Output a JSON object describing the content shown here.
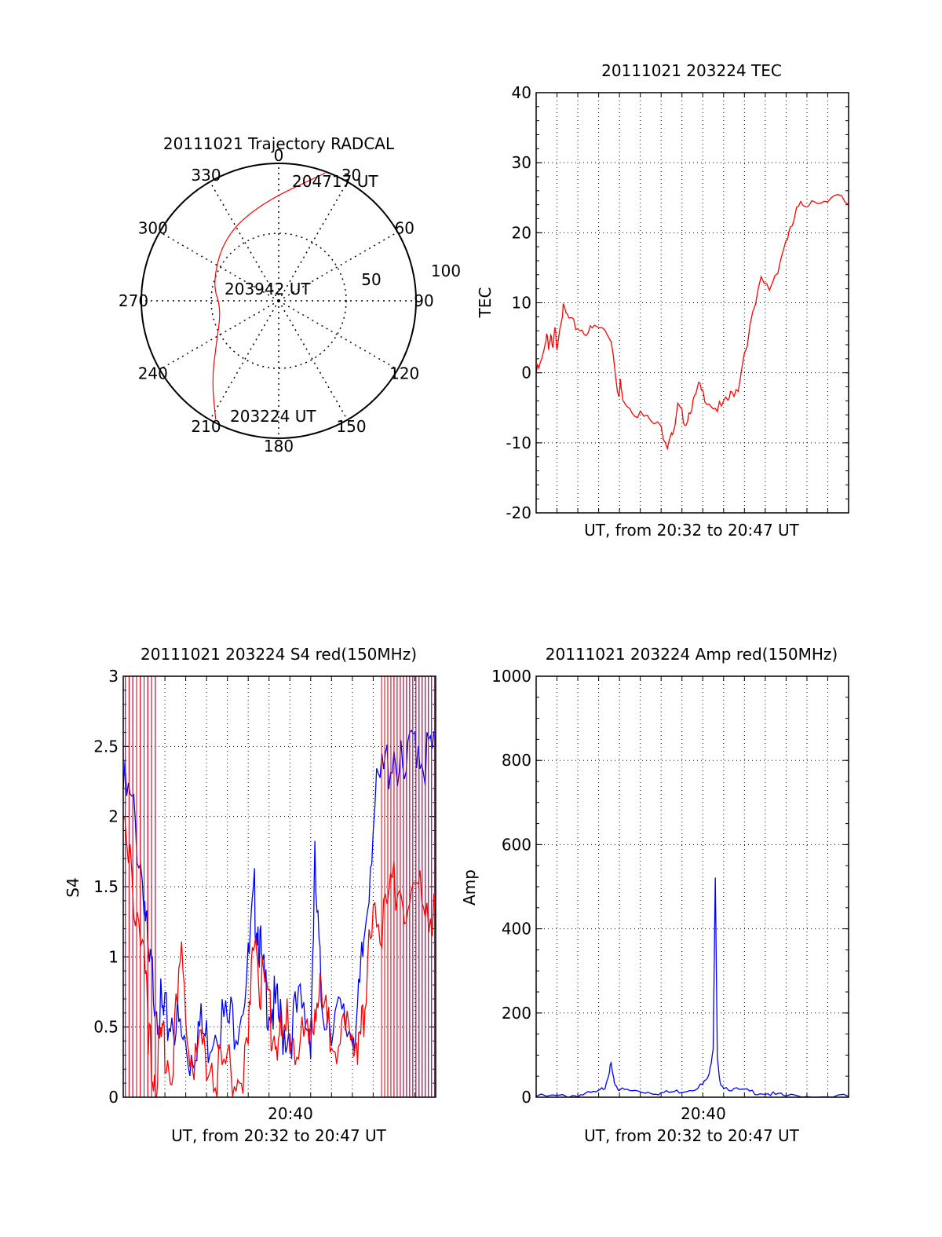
{
  "colors": {
    "red": "#ff0000",
    "blue": "#0000ff",
    "axis": "#000000",
    "grid": "#000000"
  },
  "chart_data": [
    {
      "id": "polar",
      "type": "polar-trajectory",
      "title": "20111021 Trajectory RADCAL",
      "azimuth_labels": [
        "0",
        "30",
        "60",
        "90",
        "120",
        "150",
        "180",
        "210",
        "240",
        "270",
        "300",
        "330"
      ],
      "elevation_labels": [
        "50",
        "100"
      ],
      "points": [
        {
          "label": "204717 UT",
          "az": 20,
          "zen": 89
        },
        {
          "label": "203942 UT",
          "az": 262,
          "zen": 38
        },
        {
          "label": "203224 UT",
          "az": 208,
          "zen": 88
        }
      ],
      "trajectory": [
        [
          20,
          89
        ],
        [
          350,
          65
        ],
        [
          320,
          55
        ],
        [
          285,
          45
        ],
        [
          262,
          38
        ],
        [
          235,
          50
        ],
        [
          220,
          68
        ],
        [
          208,
          88
        ]
      ]
    },
    {
      "id": "tec",
      "type": "line",
      "title": "20111021 203224 TEC",
      "ylabel": "TEC",
      "xlabel": "UT, from 20:32 to 20:47 UT",
      "xlim": [
        0,
        15
      ],
      "ylim": [
        -20,
        40
      ],
      "yticks": [
        "-20",
        "-10",
        "0",
        "10",
        "20",
        "30",
        "40"
      ],
      "series": [
        {
          "color": "red",
          "x": [
            0,
            0.2,
            0.4,
            0.5,
            0.6,
            0.7,
            0.8,
            0.9,
            1.0,
            1.2,
            1.3,
            1.5,
            1.7,
            2.0,
            2.3,
            2.6,
            2.9,
            3.3,
            3.6,
            3.9,
            4.0,
            4.05,
            4.1,
            4.3,
            4.6,
            5.0,
            5.5,
            6.0,
            6.3,
            6.5,
            6.6,
            6.8,
            7.0,
            7.2,
            7.4,
            7.6,
            7.8,
            8.0,
            8.3,
            8.6,
            8.9,
            9.2,
            9.4,
            9.7,
            10.0,
            10.4,
            10.8,
            11.2,
            11.6,
            12.0,
            12.2,
            12.5,
            12.8,
            13.1,
            13.5,
            14.0,
            14.5,
            15.0
          ],
          "y": [
            0,
            1,
            3,
            6,
            4,
            5,
            3,
            6,
            4,
            8,
            9,
            8,
            7,
            6.5,
            6,
            6,
            6.5,
            6,
            5,
            -2,
            -3,
            -1,
            -3,
            -4,
            -5,
            -6,
            -7,
            -8,
            -10,
            -8,
            -9,
            -5,
            -6,
            -7,
            -5,
            -4,
            -2,
            -3,
            -4,
            -5,
            -5,
            -4,
            -3,
            -2,
            3,
            8,
            13,
            12,
            15,
            19,
            20,
            23,
            24,
            24.5,
            25,
            24,
            25,
            24
          ]
        }
      ]
    },
    {
      "id": "s4",
      "type": "line",
      "title": "20111021 203224 S4 red(150MHz)",
      "ylabel": "S4",
      "xlabel": "UT, from 20:32 to 20:47 UT",
      "xtick_label": "20:40",
      "xtick_value": 8,
      "xlim": [
        0,
        15
      ],
      "ylim": [
        0,
        3
      ],
      "yticks": [
        "0",
        "0.5",
        "1",
        "1.5",
        "2",
        "2.5",
        "3"
      ],
      "series": [
        {
          "color": "blue",
          "x": [
            0,
            0.5,
            1.0,
            1.2,
            1.5,
            1.8,
            2.0,
            2.4,
            2.8,
            3.2,
            3.6,
            4.0,
            4.5,
            5.0,
            5.5,
            6.0,
            6.3,
            6.5,
            6.7,
            7.0,
            7.3,
            7.6,
            8.0,
            8.5,
            9.0,
            9.2,
            9.5,
            10.0,
            10.5,
            11.0,
            11.3,
            11.6,
            12.0,
            12.5,
            13.0,
            13.5,
            14.0,
            14.5,
            15.0
          ],
          "y": [
            2.2,
            2.0,
            1.5,
            0.9,
            0.8,
            0.6,
            0.5,
            0.6,
            0.4,
            0.3,
            0.5,
            0.4,
            0.6,
            0.5,
            0.6,
            0.9,
            1.4,
            1.2,
            0.8,
            0.7,
            0.6,
            0.5,
            0.5,
            0.6,
            0.5,
            1.6,
            0.7,
            0.6,
            0.5,
            0.5,
            0.6,
            1.2,
            2.0,
            2.3,
            2.5,
            2.2,
            2.6,
            2.4,
            2.5
          ]
        },
        {
          "color": "red",
          "x": [
            0,
            0.5,
            1.0,
            1.2,
            1.5,
            1.8,
            2.0,
            2.4,
            2.8,
            3.2,
            3.6,
            4.0,
            4.5,
            5.0,
            5.5,
            6.0,
            6.3,
            6.6,
            7.0,
            7.3,
            7.6,
            8.0,
            8.5,
            9.0,
            9.3,
            9.6,
            10.0,
            10.5,
            11.0,
            11.3,
            11.6,
            12.0,
            12.5,
            13.0,
            13.5,
            14.0,
            14.5,
            15.0
          ],
          "y": [
            1.8,
            1.5,
            1.1,
            0.3,
            0.2,
            0.3,
            0.4,
            0.3,
            0.9,
            0.4,
            0.3,
            0.3,
            0.2,
            0.2,
            0.2,
            0.3,
            1.3,
            0.8,
            0.6,
            0.5,
            0.4,
            0.5,
            0.4,
            0.3,
            0.8,
            0.6,
            0.4,
            0.5,
            0.3,
            0.5,
            0.4,
            1.5,
            1.2,
            1.6,
            1.4,
            1.3,
            1.5,
            1.2
          ]
        }
      ]
    },
    {
      "id": "amp",
      "type": "line",
      "title": "20111021 203224 Amp red(150MHz)",
      "ylabel": "Amp",
      "xlabel": "UT, from 20:32 to 20:47 UT",
      "xtick_label": "20:40",
      "xtick_value": 8,
      "xlim": [
        0,
        15
      ],
      "ylim": [
        0,
        1000
      ],
      "yticks": [
        "0",
        "200",
        "400",
        "600",
        "800",
        "1000"
      ],
      "series": [
        {
          "color": "blue",
          "x": [
            0,
            1,
            1.5,
            2,
            2.5,
            3,
            3.3,
            3.5,
            3.6,
            3.7,
            3.8,
            4.0,
            4.5,
            5,
            5.5,
            6,
            6.5,
            7,
            7.5,
            8,
            8.3,
            8.5,
            8.6,
            8.7,
            8.8,
            9,
            9.5,
            10,
            10.5,
            11,
            11.5,
            12,
            13,
            14,
            15
          ],
          "y": [
            2,
            2,
            3,
            5,
            8,
            12,
            25,
            60,
            80,
            45,
            30,
            18,
            15,
            14,
            12,
            10,
            12,
            15,
            20,
            30,
            50,
            120,
            525,
            90,
            40,
            25,
            18,
            15,
            12,
            10,
            5,
            3,
            2,
            2,
            2
          ]
        }
      ]
    }
  ]
}
